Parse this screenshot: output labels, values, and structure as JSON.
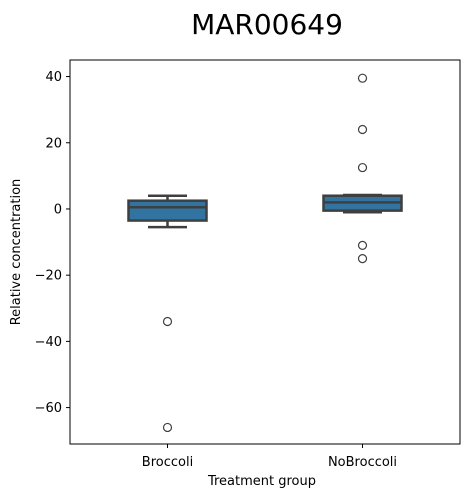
{
  "chart_data": {
    "type": "box",
    "title": "MAR00649",
    "xlabel": "Treatment group",
    "ylabel": "Relative concentration",
    "ylim": [
      -71,
      45
    ],
    "yticks": [
      40,
      20,
      0,
      -20,
      -40,
      -60
    ],
    "categories": [
      "Broccoli",
      "NoBroccoli"
    ],
    "box_color": "#3274a1",
    "line_color": "#3f3f3f",
    "boxes": [
      {
        "category": "Broccoli",
        "whislo": -5.5,
        "q1": -3.5,
        "med": 0.5,
        "q3": 2.5,
        "whishi": 4,
        "fliers": [
          -34,
          -66
        ]
      },
      {
        "category": "NoBroccoli",
        "whislo": -1,
        "q1": -0.5,
        "med": 2,
        "q3": 4,
        "whishi": 4.2,
        "fliers": [
          39.5,
          24,
          12.5,
          -11,
          -15
        ]
      }
    ]
  }
}
